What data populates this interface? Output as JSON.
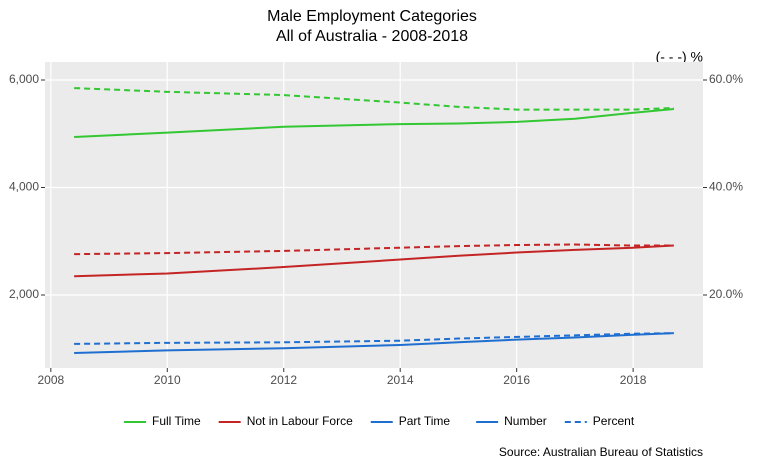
{
  "chart_data": {
    "type": "line",
    "title": "Male Employment Categories",
    "subtitle": "All of Australia - 2008-2018",
    "y2_title": "(- - -) %",
    "source": "Source: Australian Bureau of Statistics",
    "x": [
      2008.4,
      2010,
      2012,
      2014,
      2015,
      2016,
      2017,
      2018,
      2018.7
    ],
    "series": [
      {
        "name": "Full Time",
        "color": "#33c733",
        "values": [
          4940,
          5020,
          5130,
          5180,
          5190,
          5220,
          5280,
          5390,
          5460
        ],
        "percent": [
          58.5,
          57.8,
          57.2,
          55.8,
          55.0,
          54.5,
          54.5,
          54.5,
          54.8
        ]
      },
      {
        "name": "Not in Labour Force",
        "color": "#c42424",
        "values": [
          2350,
          2400,
          2520,
          2660,
          2730,
          2790,
          2840,
          2880,
          2920
        ],
        "percent": [
          27.6,
          27.8,
          28.2,
          28.8,
          29.1,
          29.3,
          29.4,
          29.2,
          29.2
        ]
      },
      {
        "name": "Part Time",
        "color": "#1f6fd1",
        "values": [
          921,
          970,
          1010,
          1070,
          1120,
          1170,
          1210,
          1260,
          1290
        ],
        "percent": [
          10.9,
          11.1,
          11.2,
          11.5,
          11.9,
          12.2,
          12.5,
          12.8,
          12.9
        ]
      }
    ],
    "linetypes": [
      "Number",
      "Percent"
    ],
    "xlim": [
      2007.9,
      2019.2
    ],
    "xticks": [
      2008,
      2010,
      2012,
      2014,
      2016,
      2018
    ],
    "ylim": [
      642,
      6335
    ],
    "yticks": [
      {
        "value": 2000,
        "label": "2,000"
      },
      {
        "value": 4000,
        "label": "4,000"
      },
      {
        "value": 6000,
        "label": "6,000"
      }
    ],
    "y2lim": [
      6.42,
      63.35
    ],
    "y2ticks": [
      {
        "value": 20,
        "label": "20.0%"
      },
      {
        "value": 40,
        "label": "40.0%"
      },
      {
        "value": 60,
        "label": "60.0%"
      }
    ],
    "grid": true
  }
}
